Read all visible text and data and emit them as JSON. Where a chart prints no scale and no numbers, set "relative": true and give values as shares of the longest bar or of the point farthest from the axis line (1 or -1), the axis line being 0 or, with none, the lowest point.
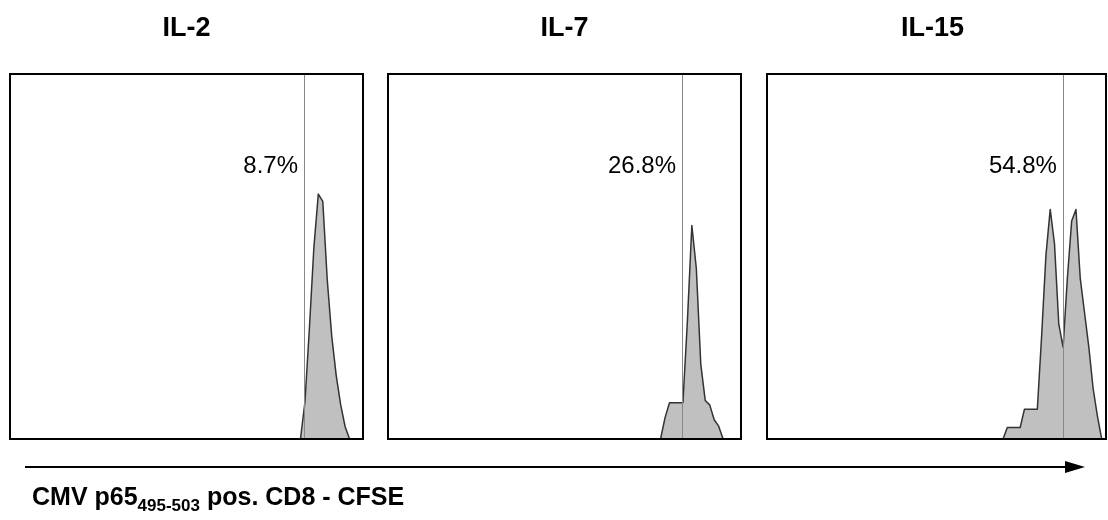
{
  "chart_data": [
    {
      "type": "area",
      "title": "IL-2",
      "xlabel": "CMV p65$_{495-503}$ pos. CD8 - CFSE",
      "relative": true,
      "legend": false,
      "categories": [
        null,
        null,
        null,
        null,
        null,
        null,
        null,
        null,
        null,
        null,
        null,
        null,
        null,
        null,
        null,
        null,
        null,
        null,
        null,
        null,
        null,
        null,
        null,
        null,
        null,
        null,
        null,
        null,
        null,
        null,
        null,
        null,
        null,
        null,
        null,
        null,
        null,
        null,
        null,
        null,
        null,
        null,
        null,
        null,
        null,
        null,
        null,
        null,
        null,
        null,
        null,
        null,
        null,
        null,
        null,
        null,
        null,
        null,
        null,
        null,
        null,
        null,
        null,
        null,
        null,
        null,
        null,
        null,
        null,
        null,
        null,
        null,
        null,
        null,
        null,
        null,
        null,
        null,
        null,
        null
      ],
      "series": [
        {
          "color": "#c0c0c0",
          "values": [
            0,
            0,
            0,
            0,
            0,
            0,
            0,
            0,
            0,
            0,
            0,
            0,
            0,
            0,
            0,
            0,
            0,
            0,
            0,
            0,
            0,
            0,
            0,
            0,
            0,
            0,
            0,
            0,
            0,
            0,
            0,
            0,
            0,
            0,
            0,
            0,
            0,
            0,
            0,
            0,
            0,
            0,
            0,
            0,
            0,
            0,
            0,
            0,
            0,
            0,
            0,
            0,
            0,
            0,
            0,
            0,
            0,
            0,
            0,
            0,
            0,
            0,
            0,
            0,
            0,
            0,
            0.15,
            0.45,
            0.78,
            1,
            0.97,
            0.65,
            0.42,
            0.26,
            0.14,
            0.05,
            0,
            0,
            0,
            0
          ]
        }
      ],
      "annotations": [
        "8.7%"
      ]
    },
    {
      "type": "area",
      "title": "IL-7",
      "relative": true,
      "legend": false,
      "categories": [
        null,
        null,
        null,
        null,
        null,
        null,
        null,
        null,
        null,
        null,
        null,
        null,
        null,
        null,
        null,
        null,
        null,
        null,
        null,
        null,
        null,
        null,
        null,
        null,
        null,
        null,
        null,
        null,
        null,
        null,
        null,
        null,
        null,
        null,
        null,
        null,
        null,
        null,
        null,
        null,
        null,
        null,
        null,
        null,
        null,
        null,
        null,
        null,
        null,
        null,
        null,
        null,
        null,
        null,
        null,
        null,
        null,
        null,
        null,
        null,
        null,
        null,
        null,
        null,
        null,
        null,
        null,
        null,
        null,
        null,
        null,
        null,
        null,
        null,
        null,
        null,
        null,
        null,
        null,
        null
      ],
      "series": [
        {
          "color": "#c0c0c0",
          "values": [
            0,
            0,
            0,
            0,
            0,
            0,
            0,
            0,
            0,
            0,
            0,
            0,
            0,
            0,
            0,
            0,
            0,
            0,
            0,
            0,
            0,
            0,
            0,
            0,
            0,
            0,
            0,
            0,
            0,
            0,
            0,
            0,
            0,
            0,
            0,
            0,
            0,
            0,
            0,
            0,
            0,
            0,
            0,
            0,
            0,
            0,
            0,
            0,
            0,
            0,
            0,
            0,
            0,
            0,
            0,
            0,
            0,
            0,
            0,
            0,
            0,
            0,
            0.1,
            0.17,
            0.17,
            0.17,
            0.17,
            0.55,
            1,
            0.8,
            0.35,
            0.18,
            0.16,
            0.09,
            0.06,
            0,
            0,
            0,
            0,
            0
          ]
        }
      ],
      "annotations": [
        "26.8%"
      ]
    },
    {
      "type": "area",
      "title": "IL-15",
      "relative": true,
      "legend": false,
      "categories": [
        null,
        null,
        null,
        null,
        null,
        null,
        null,
        null,
        null,
        null,
        null,
        null,
        null,
        null,
        null,
        null,
        null,
        null,
        null,
        null,
        null,
        null,
        null,
        null,
        null,
        null,
        null,
        null,
        null,
        null,
        null,
        null,
        null,
        null,
        null,
        null,
        null,
        null,
        null,
        null,
        null,
        null,
        null,
        null,
        null,
        null,
        null,
        null,
        null,
        null,
        null,
        null,
        null,
        null,
        null,
        null,
        null,
        null,
        null,
        null,
        null,
        null,
        null,
        null,
        null,
        null,
        null,
        null,
        null,
        null,
        null,
        null,
        null,
        null,
        null,
        null,
        null,
        null,
        null,
        null
      ],
      "series": [
        {
          "color": "#c0c0c0",
          "values": [
            0,
            0,
            0,
            0,
            0,
            0,
            0,
            0,
            0,
            0,
            0,
            0,
            0,
            0,
            0,
            0,
            0,
            0,
            0,
            0,
            0,
            0,
            0,
            0,
            0,
            0,
            0,
            0,
            0,
            0,
            0,
            0,
            0,
            0,
            0,
            0,
            0,
            0,
            0,
            0,
            0,
            0,
            0,
            0,
            0,
            0,
            0,
            0,
            0,
            0,
            0,
            0,
            0,
            0,
            0,
            0,
            0.05,
            0.05,
            0.05,
            0.05,
            0.13,
            0.13,
            0.13,
            0.13,
            0.45,
            0.8,
            1,
            0.85,
            0.5,
            0.4,
            0.7,
            0.95,
            1,
            0.7,
            0.55,
            0.4,
            0.22,
            0.1,
            0,
            0
          ]
        }
      ],
      "annotations": [
        "54.8%"
      ]
    }
  ]
}
